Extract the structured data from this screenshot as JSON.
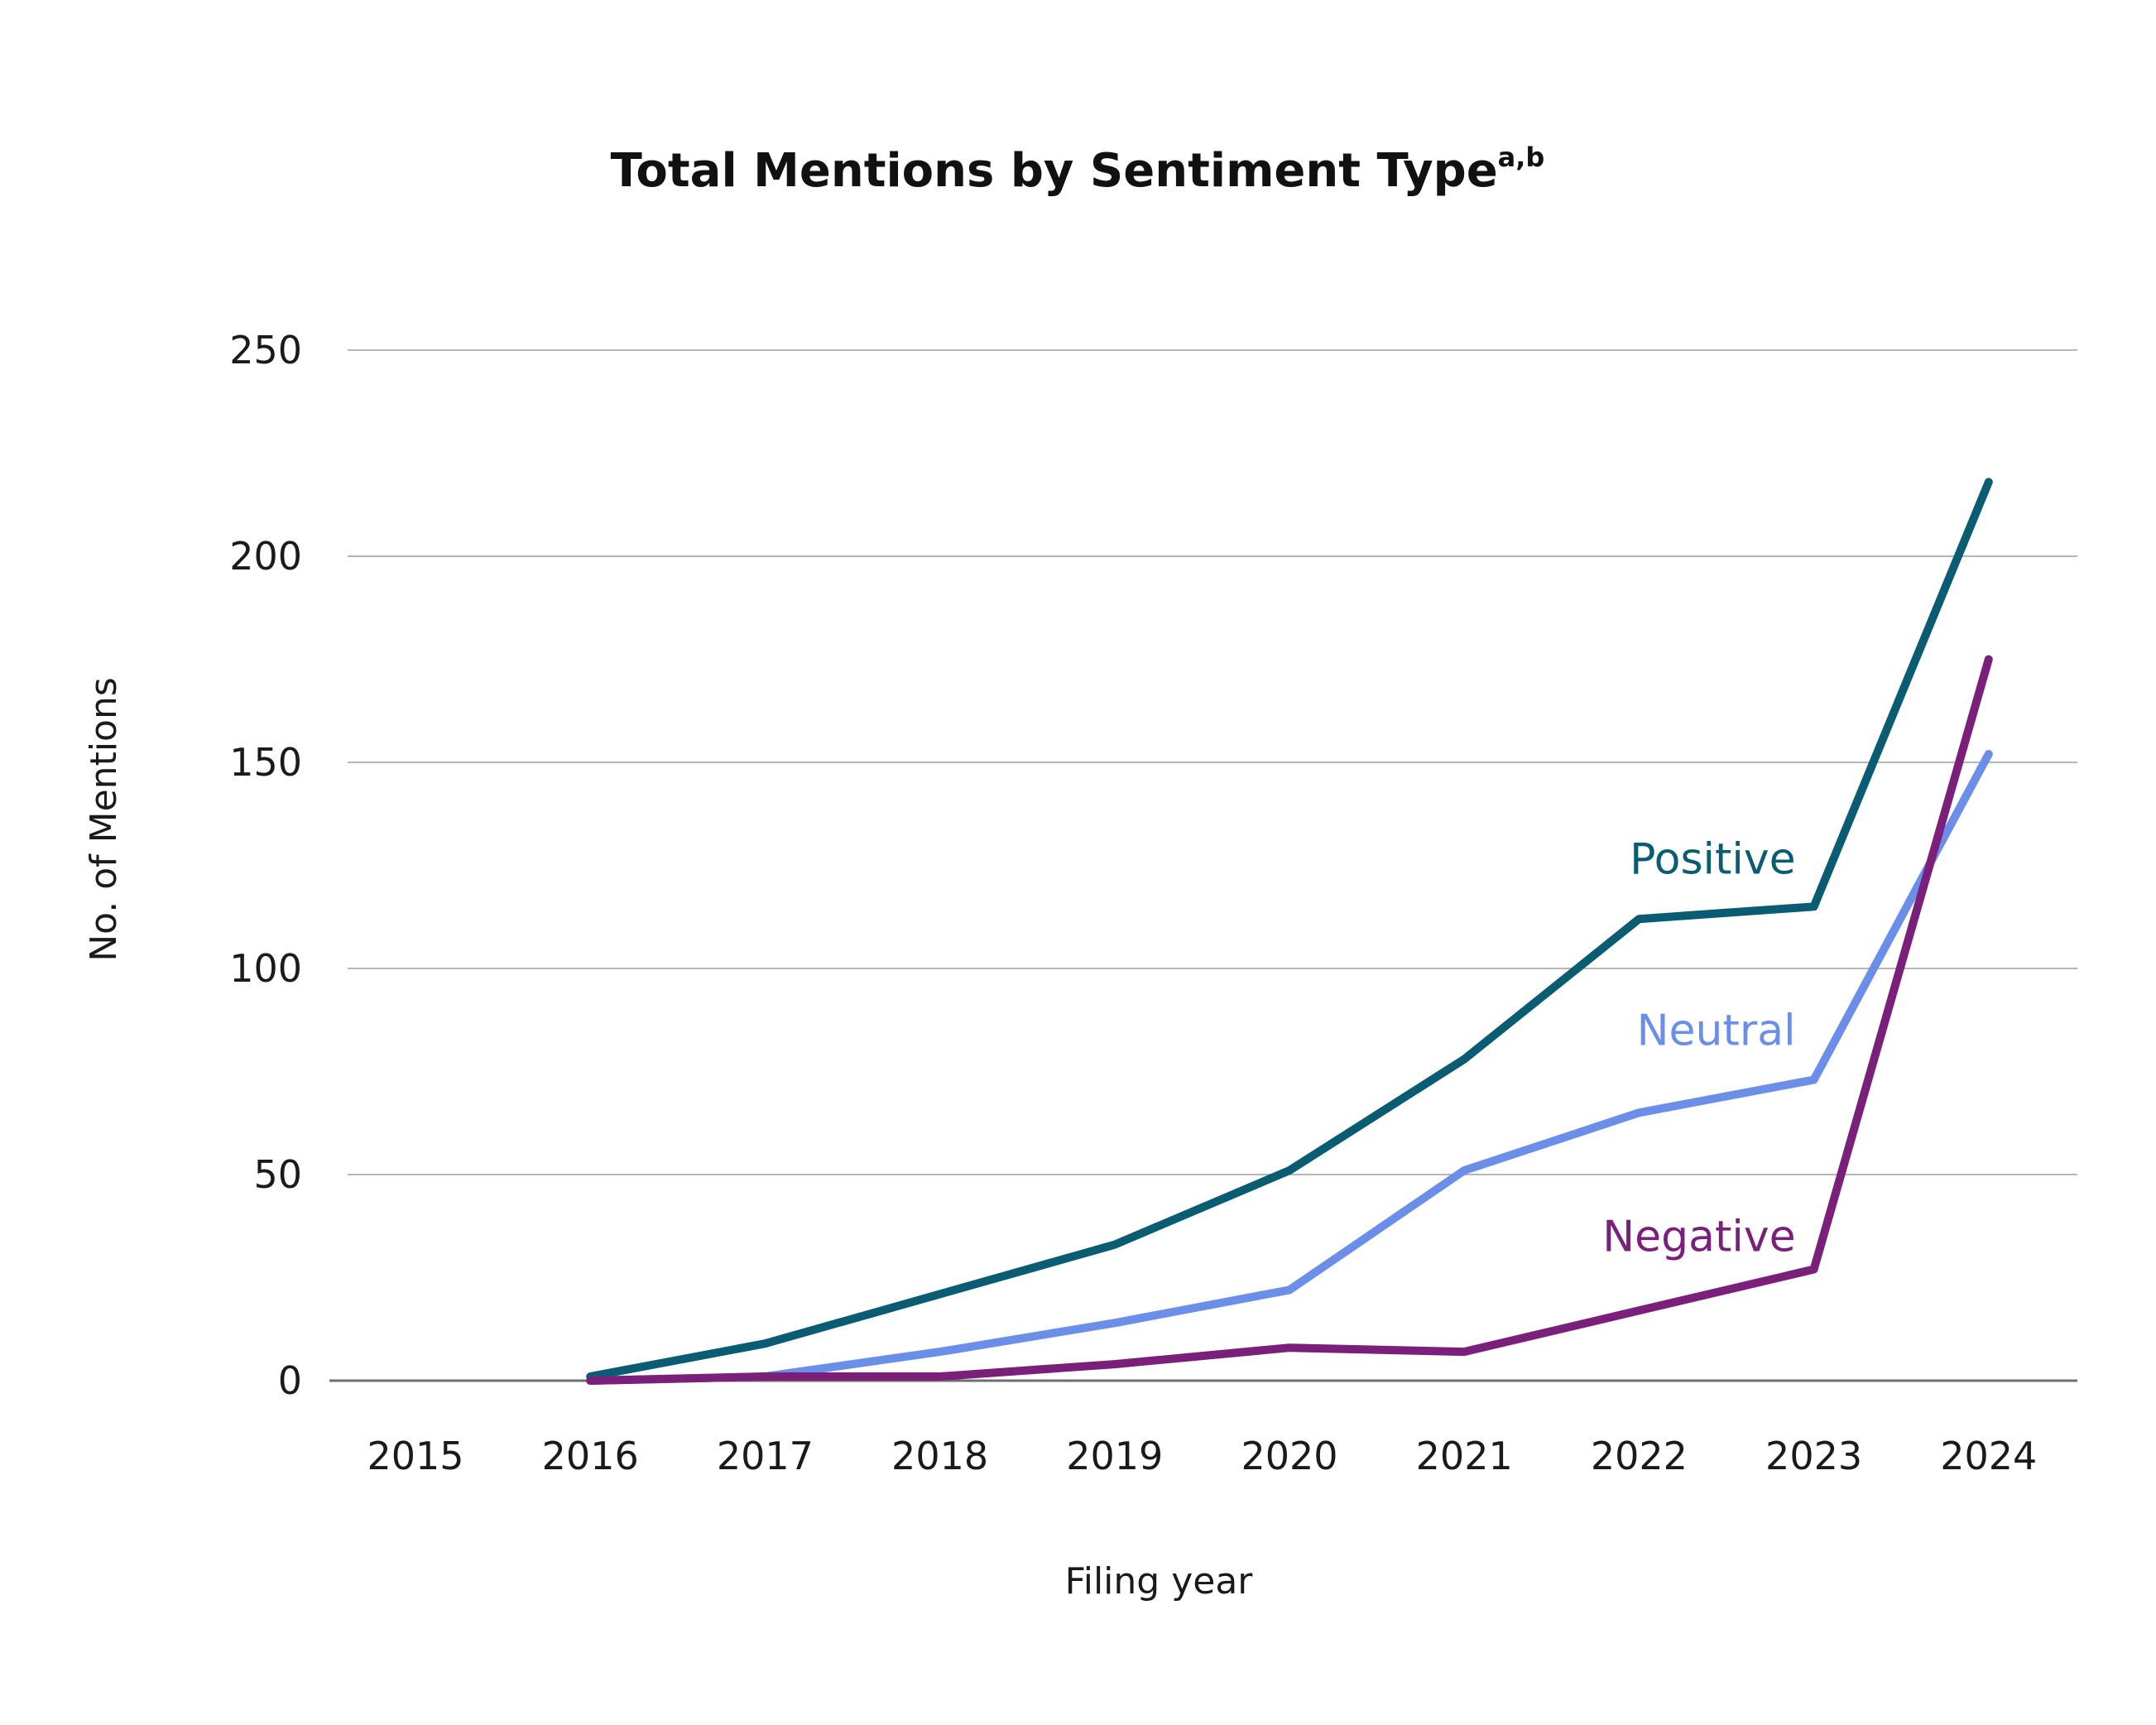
{
  "chart_data": {
    "type": "line",
    "title": "Total Mentions by Sentiment Type",
    "title_superscript": "a,b",
    "xlabel": "Filing year",
    "ylabel": "No. of Mentions",
    "x": [
      "2015",
      "2016",
      "2017",
      "2018",
      "2019",
      "2020",
      "2021",
      "2022",
      "2023",
      "2024"
    ],
    "yticks": [
      0,
      50,
      100,
      150,
      200,
      250
    ],
    "ylim": [
      0,
      250
    ],
    "grid": true,
    "series": [
      {
        "name": "Positive",
        "color": "#0a5c73",
        "values": [
          null,
          1,
          9,
          21,
          33,
          51,
          78,
          112,
          115,
          218
        ]
      },
      {
        "name": "Neutral",
        "color": "#6b8fe8",
        "values": [
          null,
          0,
          1,
          7,
          14,
          22,
          51,
          65,
          73,
          152
        ]
      },
      {
        "name": "Negative",
        "color": "#7a1f7a",
        "values": [
          null,
          0,
          1,
          1,
          4,
          8,
          7,
          17,
          27,
          175
        ]
      }
    ]
  }
}
